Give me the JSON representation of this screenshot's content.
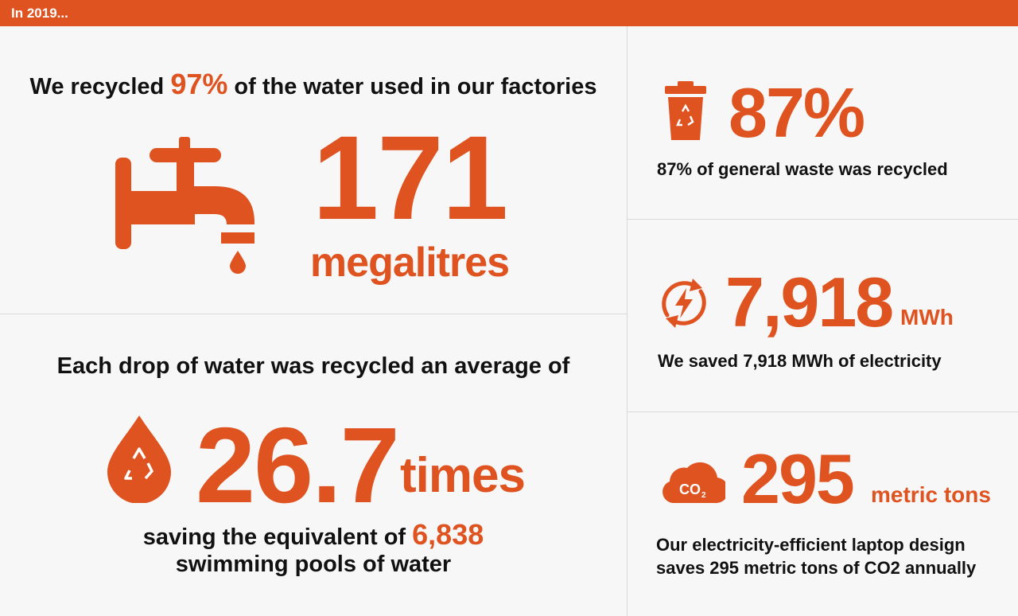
{
  "header": {
    "title": "In 2019..."
  },
  "water": {
    "pre": "We recycled ",
    "pct": "97%",
    "post": " of the water used in our factories",
    "value": "171",
    "unit": "megalitres"
  },
  "drops": {
    "heading": "Each drop of water was recycled an average of",
    "value": "26.7",
    "unit": "times",
    "saving_pre": "saving the equivalent of ",
    "saving_value": "6,838",
    "saving_line2": "swimming pools of water"
  },
  "waste": {
    "value": "87%",
    "caption": "87% of general waste was recycled"
  },
  "electricity": {
    "value": "7,918",
    "unit": "MWh",
    "caption": "We saved 7,918 MWh of electricity"
  },
  "co2": {
    "value": "295",
    "unit": "metric tons",
    "icon_label": "CO",
    "icon_sub": "2",
    "caption_line1": "Our electricity-efficient laptop design",
    "caption_line2": "saves 295 metric tons of CO2 annually"
  },
  "colors": {
    "accent": "#df5320",
    "background": "#f7f7f7",
    "divider": "#d9d9d9"
  }
}
